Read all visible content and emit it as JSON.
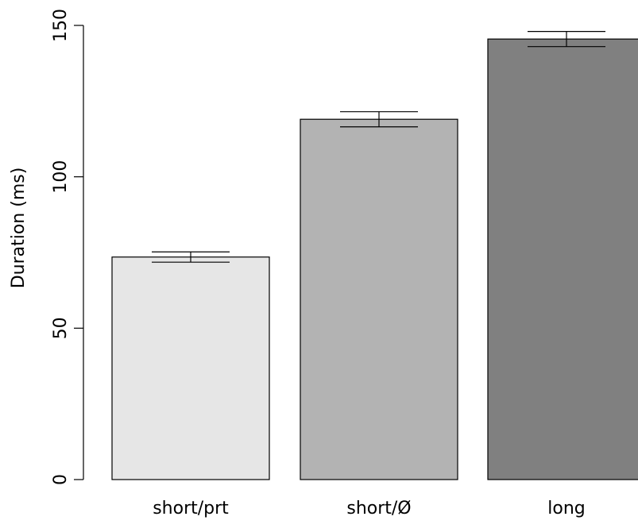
{
  "chart_data": {
    "type": "bar",
    "title": "",
    "xlabel": "",
    "ylabel": "Duration (ms)",
    "ylim": [
      0,
      150
    ],
    "yticks": [
      0,
      50,
      100,
      150
    ],
    "ytick_labels": [
      "0",
      "50",
      "100",
      "150"
    ],
    "categories": [
      "short/prt",
      "short/Ø",
      "long"
    ],
    "values": [
      73.5,
      119,
      145.5
    ],
    "error_low": [
      71.8,
      116.5,
      143
    ],
    "error_high": [
      75.2,
      121.5,
      148
    ],
    "colors": [
      "#e6e6e6",
      "#b3b3b3",
      "#808080"
    ],
    "bar_outline": "#000000",
    "grid": false,
    "legend": "none"
  }
}
